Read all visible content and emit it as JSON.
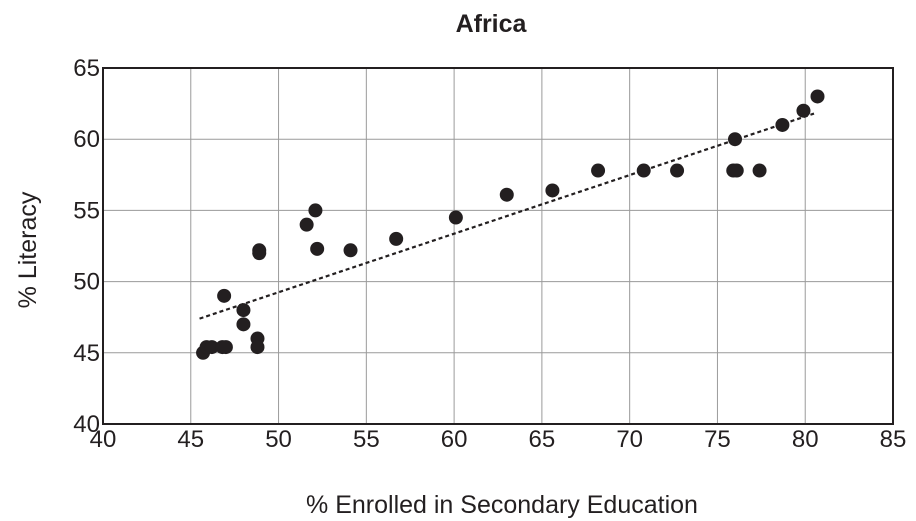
{
  "chart_data": {
    "type": "scatter",
    "title": "Africa",
    "xlabel": "% Enrolled in Secondary Education",
    "ylabel": "% Literacy",
    "xlim": [
      40,
      85
    ],
    "ylim": [
      40,
      65
    ],
    "xticks": [
      40,
      45,
      50,
      55,
      60,
      65,
      70,
      75,
      80,
      85
    ],
    "yticks": [
      40,
      45,
      50,
      55,
      60,
      65
    ],
    "grid": true,
    "legend": "none",
    "colors": {
      "points": "#231f20",
      "grid": "#9a9a9a",
      "trendline": "#231f20"
    },
    "series": [
      {
        "points": [
          [
            45.7,
            45.0
          ],
          [
            45.9,
            45.4
          ],
          [
            46.2,
            45.4
          ],
          [
            46.8,
            45.4
          ],
          [
            47.0,
            45.4
          ],
          [
            46.9,
            49.0
          ],
          [
            48.0,
            48.0
          ],
          [
            48.0,
            47.0
          ],
          [
            48.8,
            46.0
          ],
          [
            48.8,
            45.4
          ],
          [
            48.9,
            52.2
          ],
          [
            48.9,
            52.0
          ],
          [
            51.6,
            54.0
          ],
          [
            52.1,
            55.0
          ],
          [
            52.2,
            52.3
          ],
          [
            54.1,
            52.2
          ],
          [
            56.7,
            53.0
          ],
          [
            60.1,
            54.5
          ],
          [
            63.0,
            56.1
          ],
          [
            65.6,
            56.4
          ],
          [
            68.2,
            57.8
          ],
          [
            70.8,
            57.8
          ],
          [
            72.7,
            57.8
          ],
          [
            75.9,
            57.8
          ],
          [
            76.1,
            57.8
          ],
          [
            77.4,
            57.8
          ],
          [
            76.0,
            60.0
          ],
          [
            78.7,
            61.0
          ],
          [
            79.9,
            62.0
          ],
          [
            80.7,
            63.0
          ]
        ]
      }
    ],
    "trendline": {
      "style": "dashed",
      "x": [
        45.5,
        80.5
      ],
      "y": [
        47.4,
        61.8
      ]
    }
  }
}
